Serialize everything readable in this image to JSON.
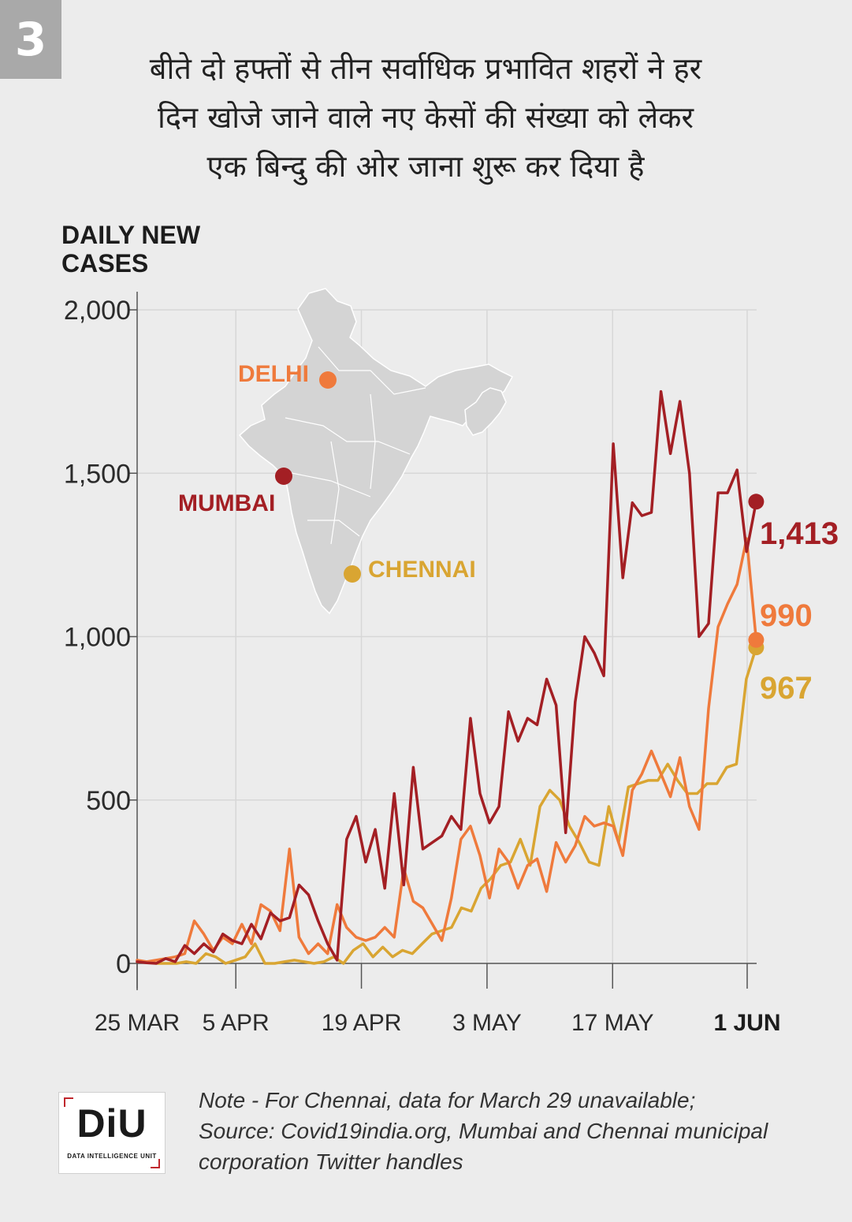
{
  "badge": "3",
  "headline": [
    "बीते दो हफ्तों से तीन सर्वाधिक प्रभावित शहरों ने हर",
    "दिन खोजे जाने वाले नए केसों की संख्या को लेकर",
    "एक बिन्दु की ओर जाना शुरू कर दिया है"
  ],
  "y_title": [
    "DAILY NEW",
    "CASES"
  ],
  "map": {
    "cities": [
      {
        "name": "DELHI",
        "color": "#ef7a3c"
      },
      {
        "name": "MUMBAI",
        "color": "#a31f24"
      },
      {
        "name": "CHENNAI",
        "color": "#d9a532"
      }
    ],
    "land_color": "#d4d4d4"
  },
  "colors": {
    "mumbai": "#a31f24",
    "delhi": "#ef7a3c",
    "chennai": "#d9a532",
    "grid": "#d7d7d7",
    "axis": "#555555"
  },
  "chart_data": {
    "type": "line",
    "title": "DAILY NEW CASES",
    "xlabel": "",
    "ylabel": "DAILY NEW CASES",
    "ylim": [
      0,
      2000
    ],
    "yticks": [
      0,
      500,
      1000,
      1500,
      2000
    ],
    "ytick_labels": [
      "0",
      "500",
      "1,000",
      "1,500",
      "2,000"
    ],
    "x_start": "25 MAR",
    "xticks": [
      {
        "day": 0,
        "label": "25 MAR",
        "bold": false
      },
      {
        "day": 11,
        "label": "5 APR",
        "bold": false
      },
      {
        "day": 25,
        "label": "19 APR",
        "bold": false
      },
      {
        "day": 39,
        "label": "3 MAY",
        "bold": false
      },
      {
        "day": 53,
        "label": "17 MAY",
        "bold": false
      },
      {
        "day": 68,
        "label": "1 JUN",
        "bold": true
      }
    ],
    "series": [
      {
        "name": "MUMBAI",
        "color": "#a31f24",
        "end_label": "1,413",
        "values": [
          5,
          2,
          0,
          15,
          5,
          55,
          30,
          60,
          35,
          90,
          70,
          60,
          120,
          75,
          155,
          130,
          140,
          240,
          210,
          130,
          60,
          10,
          380,
          450,
          310,
          410,
          230,
          520,
          240,
          600,
          350,
          370,
          390,
          450,
          410,
          750,
          520,
          430,
          480,
          770,
          680,
          750,
          730,
          870,
          790,
          400,
          800,
          1000,
          950,
          880,
          1590,
          1180,
          1410,
          1370,
          1380,
          1750,
          1560,
          1720,
          1500,
          1000,
          1040,
          1440,
          1440,
          1510,
          1260,
          1413
        ]
      },
      {
        "name": "DELHI",
        "color": "#ef7a3c",
        "end_label": "990",
        "values": [
          10,
          5,
          10,
          15,
          20,
          30,
          130,
          90,
          40,
          80,
          60,
          120,
          60,
          180,
          160,
          100,
          350,
          80,
          30,
          60,
          30,
          180,
          110,
          80,
          70,
          80,
          110,
          80,
          290,
          190,
          170,
          120,
          70,
          200,
          380,
          420,
          330,
          200,
          350,
          310,
          230,
          300,
          320,
          220,
          370,
          310,
          360,
          450,
          420,
          430,
          420,
          330,
          530,
          580,
          650,
          580,
          510,
          630,
          480,
          410,
          780,
          1030,
          1100,
          1160,
          1300,
          990
        ]
      },
      {
        "name": "CHENNAI",
        "color": "#d9a532",
        "end_label": "967",
        "values": [
          5,
          5,
          0,
          0,
          0,
          5,
          0,
          30,
          20,
          0,
          10,
          20,
          60,
          0,
          0,
          5,
          10,
          5,
          0,
          5,
          20,
          0,
          40,
          60,
          20,
          50,
          20,
          40,
          30,
          60,
          90,
          100,
          110,
          170,
          160,
          230,
          260,
          300,
          310,
          380,
          300,
          480,
          530,
          500,
          420,
          370,
          310,
          300,
          480,
          370,
          540,
          550,
          560,
          560,
          610,
          560,
          520,
          520,
          550,
          550,
          600,
          610,
          870,
          967
        ]
      }
    ]
  },
  "note_lines": [
    "Note - For Chennai, data for March 29 unavailable;",
    "Source: Covid19india.org, Mumbai and Chennai municipal",
    "corporation Twitter handles"
  ],
  "logo": {
    "main": "DiU",
    "sub": "DATA INTELLIGENCE UNIT"
  }
}
